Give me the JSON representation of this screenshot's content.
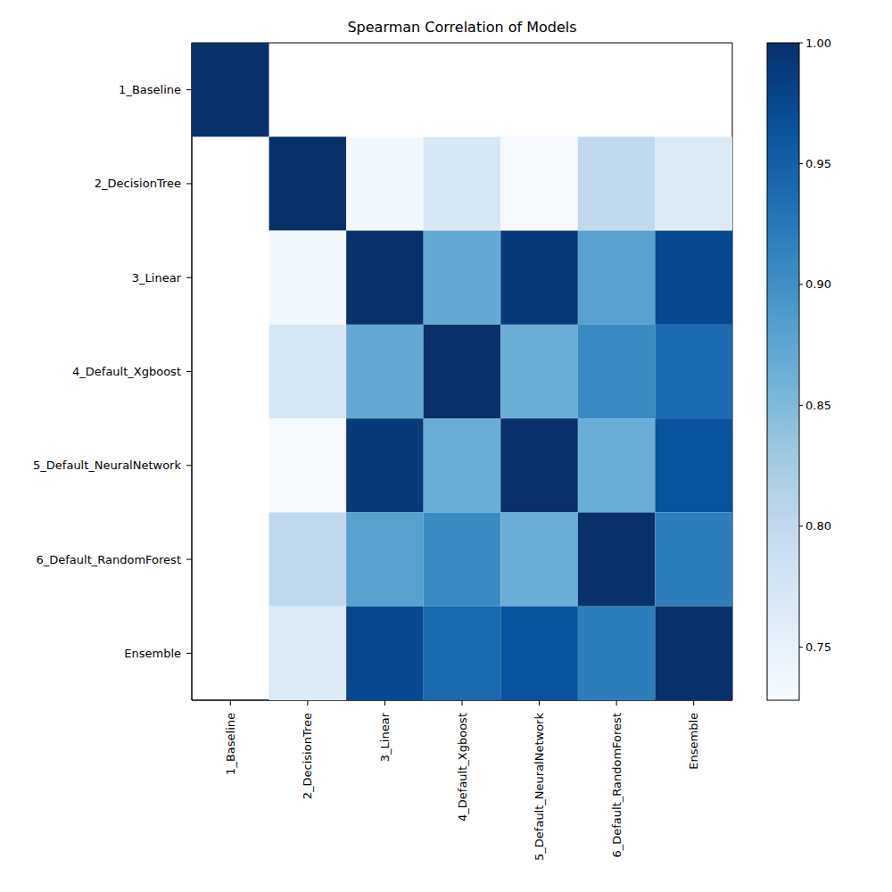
{
  "chart_data": {
    "type": "heatmap",
    "title": "Spearman Correlation of Models",
    "categories": [
      "1_Baseline",
      "2_DecisionTree",
      "3_Linear",
      "4_Default_Xgboost",
      "5_Default_NeuralNetwork",
      "6_Default_RandomForest",
      "Ensemble"
    ],
    "cells": [
      [
        1.0,
        null,
        null,
        null,
        null,
        null,
        null
      ],
      [
        null,
        1.0,
        0.735,
        0.77,
        0.73,
        0.8,
        0.765
      ],
      [
        null,
        0.735,
        1.0,
        0.87,
        0.99,
        0.88,
        0.975
      ],
      [
        null,
        0.77,
        0.87,
        1.0,
        0.865,
        0.905,
        0.94
      ],
      [
        null,
        0.73,
        0.99,
        0.865,
        1.0,
        0.865,
        0.965
      ],
      [
        null,
        0.8,
        0.88,
        0.905,
        0.865,
        1.0,
        0.92
      ],
      [
        null,
        0.765,
        0.975,
        0.94,
        0.965,
        0.92,
        1.0
      ]
    ],
    "colorbar": {
      "range": [
        0.728,
        1.0
      ],
      "ticks": [
        0.75,
        {
          "value": 0.8,
          "label": "0.80"
        },
        0.85,
        {
          "value": 0.9,
          "label": "0.90"
        },
        0.95,
        {
          "value": 1.0,
          "label": "1.00"
        }
      ]
    }
  }
}
